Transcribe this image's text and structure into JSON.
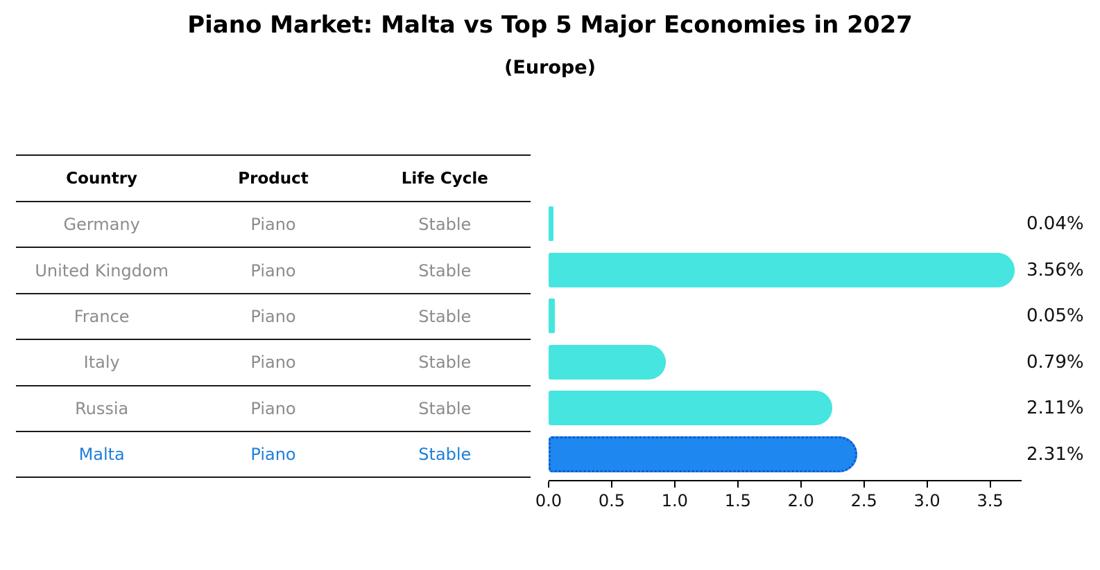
{
  "title": "Piano Market: Malta vs Top 5 Major Economies in 2027",
  "subtitle": "(Europe)",
  "table": {
    "headers": [
      "Country",
      "Product",
      "Life Cycle"
    ],
    "rows": [
      {
        "country": "Germany",
        "product": "Piano",
        "life_cycle": "Stable",
        "highlighted": false
      },
      {
        "country": "United Kingdom",
        "product": "Piano",
        "life_cycle": "Stable",
        "highlighted": false
      },
      {
        "country": "France",
        "product": "Piano",
        "life_cycle": "Stable",
        "highlighted": false
      },
      {
        "country": "Italy",
        "product": "Piano",
        "life_cycle": "Stable",
        "highlighted": false
      },
      {
        "country": "Russia",
        "product": "Piano",
        "life_cycle": "Stable",
        "highlighted": false
      },
      {
        "country": "Malta",
        "product": "Piano",
        "life_cycle": "Stable",
        "highlighted": true
      }
    ]
  },
  "chart_data": {
    "type": "bar",
    "orientation": "horizontal",
    "title": "Piano Market: Malta vs Top 5 Major Economies in 2027",
    "subtitle": "(Europe)",
    "categories": [
      "Germany",
      "United Kingdom",
      "France",
      "Italy",
      "Russia",
      "Malta"
    ],
    "values": [
      0.04,
      3.56,
      0.05,
      0.79,
      2.11,
      2.31
    ],
    "value_labels": [
      "0.04%",
      "3.56%",
      "0.05%",
      "0.79%",
      "2.11%",
      "2.31%"
    ],
    "xlabel": "",
    "ylabel": "",
    "xlim": [
      0,
      3.75
    ],
    "x_ticks": [
      "0.0",
      "0.5",
      "1.0",
      "1.5",
      "2.0",
      "2.5",
      "3.0",
      "3.5"
    ],
    "grid": false,
    "legend": false,
    "highlight_index": 5,
    "bar_color": "#46E5E0",
    "highlight_color": "#1E87F0",
    "highlight_border_color": "#1058C8",
    "highlight_text_color": "#1E7FDB",
    "table_text_color": "#8C8C8C",
    "label_color": "#111111"
  }
}
